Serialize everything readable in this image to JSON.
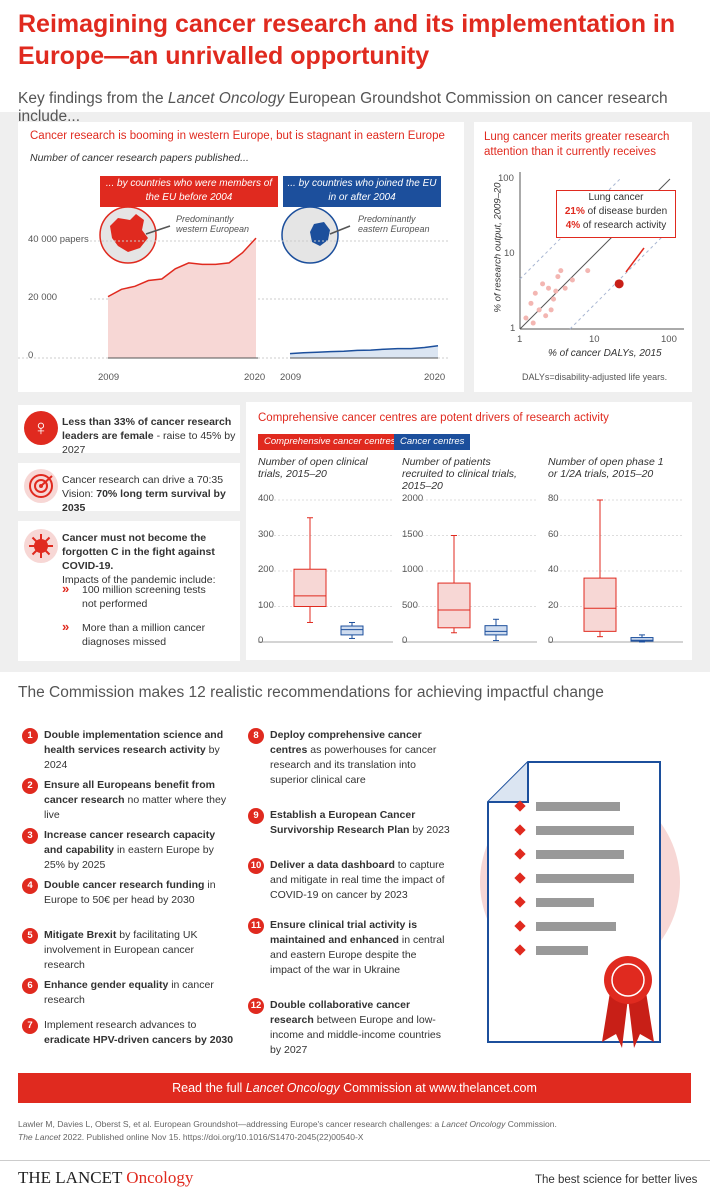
{
  "title": "Reimagining cancer research and its implementation in Europe—an unrivalled opportunity",
  "subtitle_pre": "Key findings from the ",
  "subtitle_journal": "Lancet Oncology",
  "subtitle_post": " European Groundshot Commission on cancer research include...",
  "panel_papers": {
    "title": "Cancer research is booming in western Europe, but is stagnant in eastern Europe",
    "subtitle": "Number of cancer research papers published...",
    "west_banner": "... by countries who were members of the EU before 2004",
    "east_banner": "... by countries who joined the EU in or after 2004",
    "west_note": "Predominantly western European",
    "east_note": "Predominantly eastern European",
    "y_tick_40000": "40 000 papers",
    "y_tick_20000": "20 000",
    "y_tick_0": "0",
    "x_start": "2009",
    "x_end": "2020"
  },
  "panel_lung": {
    "title": "Lung cancer merits greater research attention than it currently receives",
    "ylabel": "% of research output, 2009–20",
    "xlabel": "% of cancer DALYs, 2015",
    "box_title": "Lung cancer",
    "burden_value": "21%",
    "burden_label": "of disease burden",
    "activity_value": "4%",
    "activity_label": "of research activity",
    "tick_1": "1",
    "tick_10": "10",
    "tick_100": "100",
    "ytick_1": "1",
    "ytick_10": "10",
    "ytick_100": "100",
    "note": "DALYs=disability-adjusted life years."
  },
  "facts": [
    {
      "text": "Less than 33% of cancer research leaders are female",
      "tail": " - raise to 45% by 2027"
    },
    {
      "pre": "Cancer research can drive a 70:35 Vision: ",
      "bold": "70% long term survival by 2035"
    },
    {
      "bold": "Cancer must not become the forgotten C in the fight against COVID-19.",
      "rest": "Impacts of the pandemic include:"
    }
  ],
  "impacts": [
    "100 million screening tests not performed",
    "More than a million cancer diagnoses missed"
  ],
  "panel_centres": {
    "title": "Comprehensive cancer centres are potent drivers of research activity",
    "legend_ccc": "Comprehensive cancer centres",
    "legend_cc": "Cancer centres",
    "charts": [
      {
        "label": "Number of open clinical trials, 2015–20",
        "ticks": [
          "400",
          "300",
          "200",
          "100",
          "0"
        ]
      },
      {
        "label": "Number of patients recruited to clinical trials, 2015–20",
        "ticks": [
          "2000",
          "1500",
          "1000",
          "500",
          "0"
        ]
      },
      {
        "label": "Number of open phase 1 or 1/2A trials, 2015–20",
        "ticks": [
          "80",
          "60",
          "40",
          "20",
          "0"
        ]
      }
    ]
  },
  "chart_data": [
    {
      "type": "area",
      "title": "Number of cancer research papers published by countries who were members of the EU before 2004",
      "x": [
        2009,
        2010,
        2011,
        2012,
        2013,
        2014,
        2015,
        2016,
        2017,
        2018,
        2019,
        2020
      ],
      "values": [
        21000,
        23500,
        24500,
        26500,
        27000,
        30500,
        32500,
        32000,
        32000,
        32500,
        36000,
        41000
      ],
      "ylim": [
        0,
        45000
      ]
    },
    {
      "type": "area",
      "title": "Number of cancer research papers published by countries who joined the EU in or after 2004",
      "x": [
        2009,
        2010,
        2011,
        2012,
        2013,
        2014,
        2015,
        2016,
        2017,
        2018,
        2019,
        2020
      ],
      "values": [
        1500,
        1800,
        2000,
        2200,
        2300,
        2600,
        2700,
        3000,
        3200,
        3200,
        3600,
        4200
      ],
      "ylim": [
        0,
        45000
      ]
    },
    {
      "type": "scatter",
      "title": "Lung cancer merits greater research attention than it currently receives",
      "xlabel": "% of cancer DALYs, 2015",
      "ylabel": "% of research output, 2009–20",
      "scale": "log",
      "xlim": [
        1,
        100
      ],
      "ylim": [
        1,
        100
      ],
      "highlight": {
        "name": "Lung cancer",
        "x": 21,
        "y": 4
      },
      "x": [
        1.2,
        1.5,
        1.8,
        2.0,
        2.4,
        2.8,
        3.2,
        3.5,
        4.0,
        1.4,
        2.2,
        3.0,
        5.0,
        8.0,
        1.6,
        2.6
      ],
      "y": [
        1.4,
        1.2,
        1.8,
        4.0,
        3.5,
        2.5,
        5.0,
        6.0,
        3.5,
        2.2,
        1.5,
        3.2,
        4.5,
        6.0,
        3.0,
        1.8
      ]
    },
    {
      "type": "box",
      "title": "Number of open clinical trials, 2015–20",
      "ylim": [
        0,
        400
      ],
      "series": [
        {
          "name": "Comprehensive cancer centres",
          "min": 55,
          "q1": 100,
          "median": 130,
          "q3": 205,
          "max": 350
        },
        {
          "name": "Cancer centres",
          "min": 10,
          "q1": 20,
          "median": 35,
          "q3": 45,
          "max": 55
        }
      ]
    },
    {
      "type": "box",
      "title": "Number of patients recruited to clinical trials, 2015–20",
      "ylim": [
        0,
        2000
      ],
      "series": [
        {
          "name": "Comprehensive cancer centres",
          "min": 130,
          "q1": 200,
          "median": 450,
          "q3": 830,
          "max": 1500
        },
        {
          "name": "Cancer centres",
          "min": 20,
          "q1": 100,
          "median": 150,
          "q3": 230,
          "max": 320
        }
      ]
    },
    {
      "type": "box",
      "title": "Number of open phase 1 or 1/2A trials, 2015–20",
      "ylim": [
        0,
        80
      ],
      "series": [
        {
          "name": "Comprehensive cancer centres",
          "min": 3,
          "q1": 6,
          "median": 19,
          "q3": 36,
          "max": 80
        },
        {
          "name": "Cancer centres",
          "min": 0,
          "q1": 0.5,
          "median": 1,
          "q3": 2.5,
          "max": 4
        }
      ]
    }
  ],
  "recs_heading": "The Commission makes 12 realistic recommendations for achieving impactful change",
  "recs": [
    {
      "num": "1",
      "bold": "Double implementation science and health services research activity",
      "rest": " by 2024"
    },
    {
      "num": "2",
      "bold": "Ensure all Europeans benefit from cancer research",
      "rest": " no matter where they live"
    },
    {
      "num": "3",
      "bold": "Increase cancer research capacity and capability",
      "rest": " in eastern Europe by 25% by 2025"
    },
    {
      "num": "4",
      "bold": "Double cancer research funding",
      "rest": " in Europe to 50€ per head by 2030"
    },
    {
      "num": "5",
      "bold": "Mitigate Brexit",
      "rest": " by facilitating UK involvement in European cancer research"
    },
    {
      "num": "6",
      "bold": "Enhance gender equality",
      "rest": " in cancer research"
    },
    {
      "num": "7",
      "pre": "Implement research advances to ",
      "bold": "eradicate HPV-driven cancers by 2030"
    },
    {
      "num": "8",
      "bold": "Deploy comprehensive cancer centres",
      "rest": " as powerhouses for cancer research and its translation into superior clinical care"
    },
    {
      "num": "9",
      "bold": "Establish a European Cancer Survivorship Research Plan",
      "rest": " by 2023"
    },
    {
      "num": "10",
      "bold": "Deliver a data dashboard",
      "rest": " to capture and mitigate in real time the impact of COVID-19 on cancer by 2023"
    },
    {
      "num": "11",
      "bold": "Ensure clinical trial activity is maintained and enhanced",
      "rest": " in central and eastern Europe despite the impact of the war in Ukraine"
    },
    {
      "num": "12",
      "bold": "Double collaborative cancer research",
      "rest": " between Europe and low-income and middle-income countries by 2027"
    }
  ],
  "cta_pre": "Read the full ",
  "cta_journal": "Lancet Oncology",
  "cta_post": " Commission at www.thelancet.com",
  "citation_line1_pre": "Lawler M, Davies L, Oberst S, et al. European Groundshot—addressing Europe's cancer research challenges: a ",
  "citation_line1_journal": "Lancet Oncology",
  "citation_line1_post": " Commission.",
  "citation_line2_journal": "The Lancet",
  "citation_line2_post": " 2022. Published online Nov 15. https://doi.org/10.1016/S1470-2045(22)00540-X",
  "logo_main": "THE LANCET",
  "logo_sub": "Oncology",
  "tagline": "The best science for better lives",
  "colors": {
    "red": "#e02a1f",
    "blue": "#1c4f9c",
    "pink": "#f7d7d5",
    "grey": "#f1f1f1"
  }
}
